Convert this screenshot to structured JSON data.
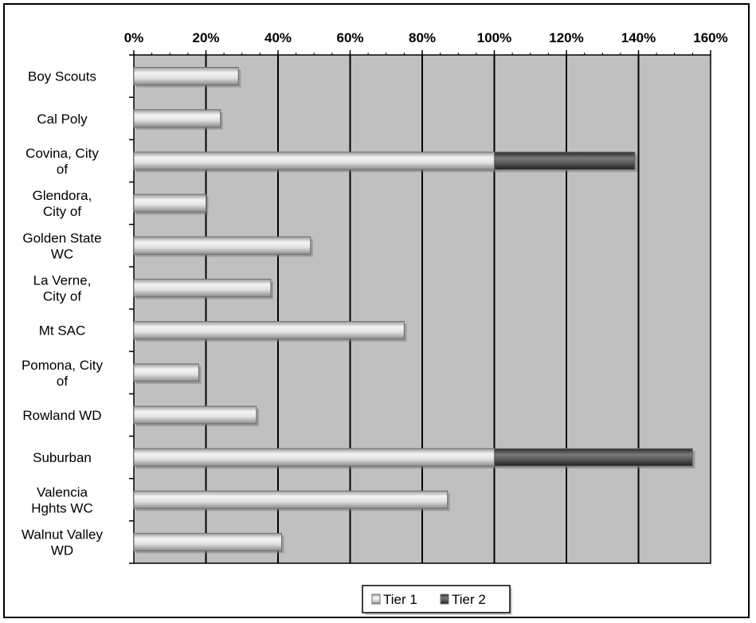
{
  "chart_data": {
    "type": "bar",
    "orientation": "horizontal",
    "stacked": true,
    "title": "",
    "xlabel": "",
    "ylabel": "",
    "xlim": [
      0,
      160
    ],
    "x_ticks": [
      "0%",
      "20%",
      "40%",
      "60%",
      "80%",
      "100%",
      "120%",
      "140%",
      "160%"
    ],
    "x_tick_values": [
      0,
      20,
      40,
      60,
      80,
      100,
      120,
      140,
      160
    ],
    "x_axis_position": "top",
    "grid": true,
    "legend_position": "bottom-center",
    "categories": [
      [
        "Boy Scouts"
      ],
      [
        "Cal Poly"
      ],
      [
        "Covina, City",
        "of"
      ],
      [
        "Glendora,",
        "City of"
      ],
      [
        "Golden State",
        "WC"
      ],
      [
        "La Verne,",
        "City of"
      ],
      [
        "Mt SAC"
      ],
      [
        "Pomona, City",
        "of"
      ],
      [
        "Rowland WD"
      ],
      [
        "Suburban"
      ],
      [
        "Valencia",
        "Hghts WC"
      ],
      [
        "Walnut Valley",
        "WD"
      ]
    ],
    "series": [
      {
        "name": "Tier 1",
        "color": "#e6e6e6",
        "values": [
          29,
          24,
          100,
          20,
          49,
          38,
          75,
          18,
          34,
          100,
          87,
          41
        ]
      },
      {
        "name": "Tier 2",
        "color": "#5c5c5c",
        "values": [
          0,
          0,
          39,
          0,
          0,
          0,
          0,
          0,
          0,
          55,
          0,
          0
        ]
      }
    ],
    "plot_background": "#c0c0c0",
    "gridline_color": "#000000"
  }
}
